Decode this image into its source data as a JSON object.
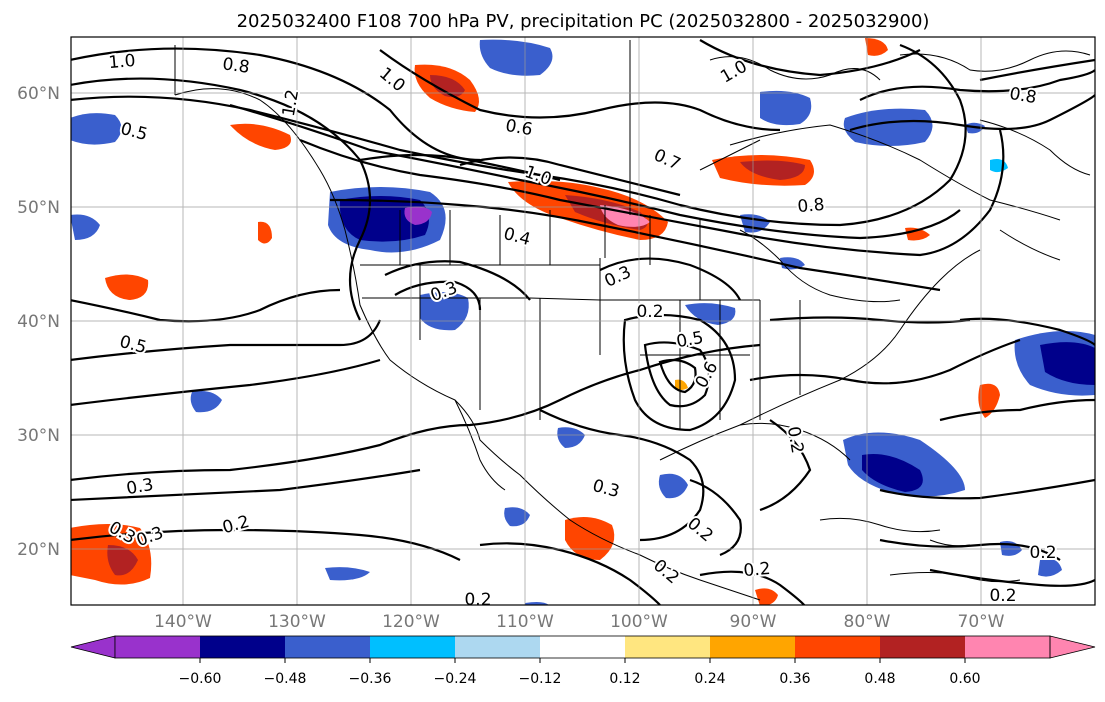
{
  "title": "2025032400 F108 700 hPa PV, precipitation PC (2025032800 - 2025032900)",
  "map": {
    "lat_labels": [
      "60°N",
      "50°N",
      "40°N",
      "30°N",
      "20°N"
    ],
    "lon_labels": [
      "140°W",
      "130°W",
      "120°W",
      "110°W",
      "100°W",
      "90°W",
      "80°W",
      "70°W"
    ],
    "gridlines": true
  },
  "colorbar": {
    "ticks": [
      "−0.60",
      "−0.48",
      "−0.36",
      "−0.24",
      "−0.12",
      "0.12",
      "0.24",
      "0.36",
      "0.48",
      "0.60"
    ],
    "colors": [
      "#9932cc",
      "#00008b",
      "#3a5fcd",
      "#00bfff",
      "#add8f0",
      "#ffffff",
      "#ffe680",
      "#ffa500",
      "#ff4500",
      "#b22222",
      "#ff85b0"
    ],
    "extend": "both"
  },
  "contour_labels": [
    "1.0",
    "0.8",
    "1.2",
    "1.0",
    "0.6",
    "0.7",
    "1.0",
    "0.8",
    "0.5",
    "0.8",
    "1.0",
    "0.4",
    "0.3",
    "0.3",
    "0.2",
    "0.5",
    "0.5",
    "0.6",
    "0.3",
    "0.3",
    "0.2",
    "0.2",
    "0.3",
    "0.2",
    "0.2",
    "0.2",
    "0.2",
    "0.2",
    "0.2",
    "0.3"
  ]
}
